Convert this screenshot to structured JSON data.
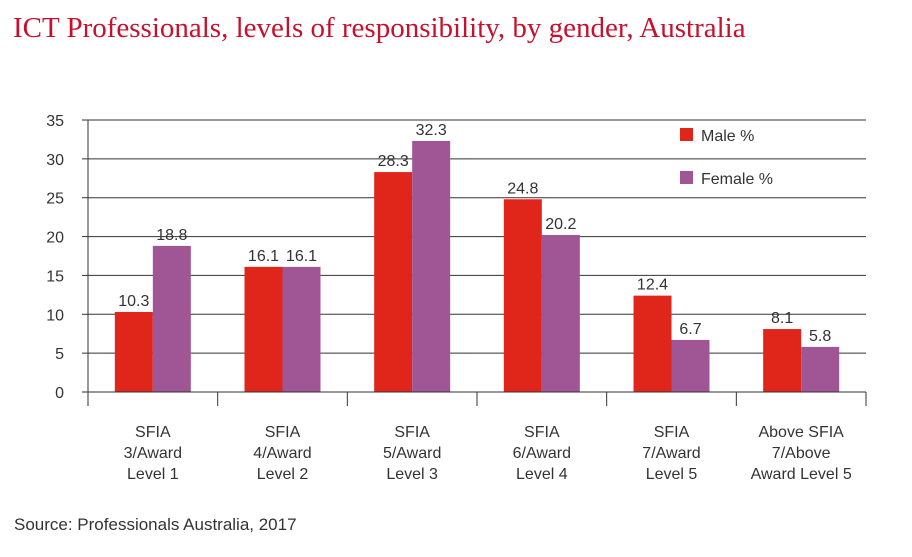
{
  "title": "ICT Professionals, levels of responsibility, by gender, Australia",
  "source": "Source: Professionals Australia, 2017",
  "colors": {
    "male": "#e0251b",
    "female": "#a05595",
    "title": "#c8102e"
  },
  "chart_data": {
    "type": "bar",
    "categories": [
      [
        "SFIA",
        "3/Award",
        "Level 1"
      ],
      [
        "SFIA",
        "4/Award",
        "Level 2"
      ],
      [
        "SFIA",
        "5/Award",
        "Level 3"
      ],
      [
        "SFIA",
        "6/Award",
        "Level 4"
      ],
      [
        "SFIA",
        "7/Award",
        "Level 5"
      ],
      [
        "Above SFIA",
        "7/Above",
        "Award Level 5"
      ]
    ],
    "series": [
      {
        "name": "Male %",
        "values": [
          10.3,
          16.1,
          28.3,
          24.8,
          12.4,
          8.1
        ],
        "labels": [
          "10.3",
          "16.1",
          "28.3",
          "24.8",
          "12.4",
          "8.1"
        ]
      },
      {
        "name": "Female %",
        "values": [
          18.8,
          16.1,
          32.3,
          20.2,
          6.7,
          5.8
        ],
        "labels": [
          "18.8",
          "16.1",
          "32.3",
          "20.2",
          "6.7",
          "5.8"
        ]
      }
    ],
    "ylim": [
      0,
      35
    ],
    "yticks": [
      0,
      5,
      10,
      15,
      20,
      25,
      30,
      35
    ],
    "grid": true,
    "legend_position": "top-right"
  }
}
